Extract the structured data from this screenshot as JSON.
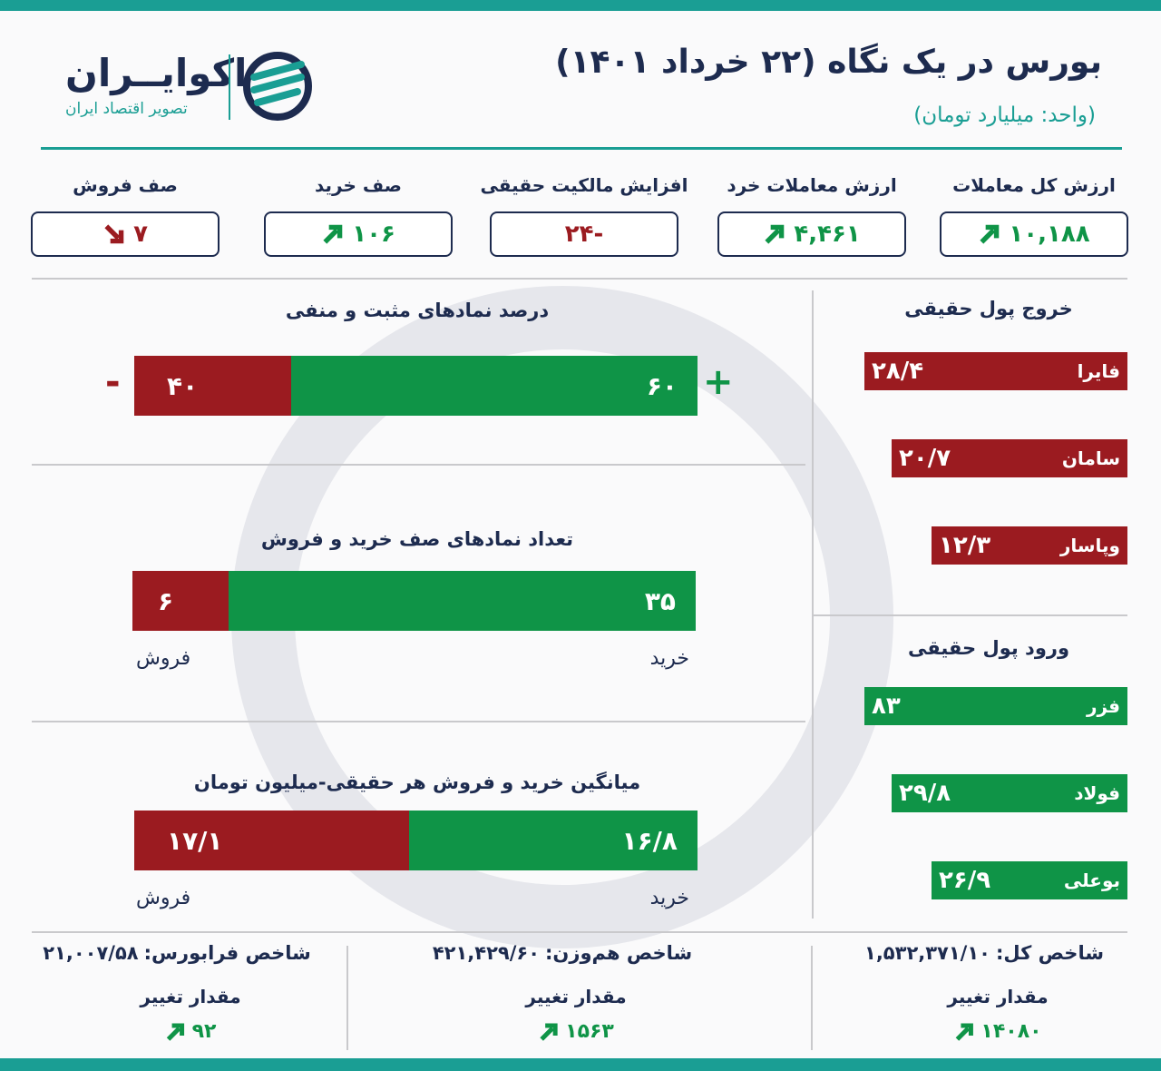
{
  "header": {
    "title": "بورس در یک نگاه (۲۲ خرداد ۱۴۰۱)",
    "subtitle": "(واحد: میلیارد تومان)",
    "logo": "اکوایــران",
    "tagline": "تصویر اقتصاد ایران"
  },
  "kpis": [
    {
      "label": "ارزش کل معاملات",
      "value": "۱۰,۱۸۸",
      "trend": "up"
    },
    {
      "label": "ارزش معاملات خرد",
      "value": "۴,۴۶۱",
      "trend": "up"
    },
    {
      "label": "افزایش مالکیت حقیقی",
      "value": "-۲۴",
      "trend": "none"
    },
    {
      "label": "صف خرید",
      "value": "۱۰۶",
      "trend": "up"
    },
    {
      "label": "صف فروش",
      "value": "۷",
      "trend": "down"
    }
  ],
  "panels": [
    {
      "title": "درصد نمادهای مثبت و منفی",
      "green": "۶۰",
      "red": "۴۰",
      "plus": "+",
      "minus": "-"
    },
    {
      "title": "تعداد نمادهای صف خرید و فروش",
      "green": "۳۵",
      "red": "۶",
      "green_label": "خرید",
      "red_label": "فروش"
    },
    {
      "title": "میانگین خرید و فروش هر حقیقی-میلیون تومان",
      "green": "۱۶/۸",
      "red": "۱۷/۱",
      "green_label": "خرید",
      "red_label": "فروش"
    }
  ],
  "outflow": {
    "title": "خروج پول حقیقی",
    "items": [
      {
        "name": "فایرا",
        "value": "۲۸/۴"
      },
      {
        "name": "سامان",
        "value": "۲۰/۷"
      },
      {
        "name": "وپاسار",
        "value": "۱۲/۳"
      }
    ]
  },
  "inflow": {
    "title": "ورود پول حقیقی",
    "items": [
      {
        "name": "فزر",
        "value": "۸۳"
      },
      {
        "name": "فولاد",
        "value": "۲۹/۸"
      },
      {
        "name": "بوعلی",
        "value": "۲۶/۹"
      }
    ]
  },
  "indices": [
    {
      "label": "شاخص کل:",
      "value": "۱,۵۳۲,۳۷۱/۱۰",
      "change_label": "مقدار تغییر",
      "change": "۱۴۰۸۰",
      "trend": "up"
    },
    {
      "label": "شاخص هم‌وزن:",
      "value": "۴۲۱,۴۲۹/۶۰",
      "change_label": "مقدار تغییر",
      "change": "۱۵۶۳",
      "trend": "up"
    },
    {
      "label": "شاخص فرابورس:",
      "value": "۲۱,۰۰۷/۵۸",
      "change_label": "مقدار تغییر",
      "change": "۹۲",
      "trend": "up"
    }
  ]
}
